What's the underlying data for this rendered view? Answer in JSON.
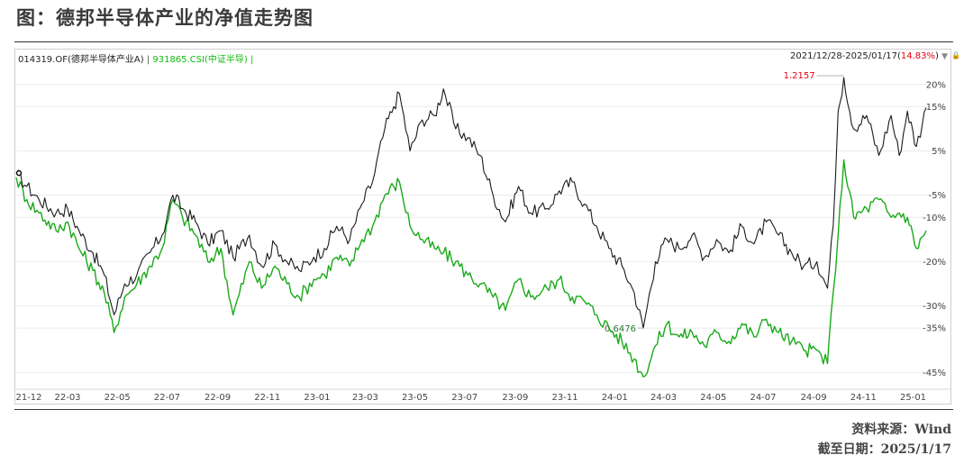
{
  "figure_title": "图：德邦半导体产业的净值走势图",
  "legend": {
    "fund_label": "014319.OF(德邦半导体产业A)",
    "separator": "|",
    "index_label": "931865.CSI(中证半导)",
    "trailing": "|"
  },
  "range": {
    "dates": "2021/12/28-2025/01/17",
    "open": "(",
    "pct": "14.83%",
    "close": ")",
    "arrow": "▼",
    "lock": "🔒"
  },
  "source": "资料来源：Wind",
  "cutoff_date": "截至日期：2025/1/17",
  "colors": {
    "fund": "#1a1a1a",
    "index": "#1aaa1a",
    "annot_red": "#e60012"
  },
  "chart_data": {
    "type": "line",
    "x_ticks": [
      "21-12",
      "22-03",
      "22-05",
      "22-07",
      "22-09",
      "22-11",
      "23-01",
      "23-03",
      "23-05",
      "23-07",
      "23-09",
      "23-11",
      "24-01",
      "24-03",
      "24-05",
      "24-07",
      "24-09",
      "24-11",
      "25-01"
    ],
    "y_ticks": [
      "20%",
      "15%",
      "5%",
      "-5%",
      "-10%",
      "-20%",
      "-30%",
      "-35%",
      "-45%"
    ],
    "y_tick_values": [
      20,
      15,
      5,
      -5,
      -10,
      -20,
      -30,
      -35,
      -45
    ],
    "ylim": [
      -48,
      22
    ],
    "x_range": [
      "2021-12-28",
      "2025-01-17"
    ],
    "annotations": [
      {
        "text": "1.2157",
        "x": "2024-10-08",
        "y": 21.6,
        "color": "red"
      },
      {
        "text": "0.6476",
        "x": "2024-02-05",
        "y": -35.2,
        "color": "green"
      }
    ],
    "series": [
      {
        "name": "014319.OF(德邦半导体产业A)",
        "points": [
          [
            "2021-12-28",
            0
          ],
          [
            "2022-01-10",
            -3
          ],
          [
            "2022-01-25",
            -6
          ],
          [
            "2022-02-15",
            -9
          ],
          [
            "2022-03-01",
            -8
          ],
          [
            "2022-03-15",
            -13
          ],
          [
            "2022-04-01",
            -18
          ],
          [
            "2022-04-15",
            -23
          ],
          [
            "2022-04-27",
            -32
          ],
          [
            "2022-05-10",
            -25
          ],
          [
            "2022-05-25",
            -23
          ],
          [
            "2022-06-10",
            -18
          ],
          [
            "2022-06-25",
            -14
          ],
          [
            "2022-07-08",
            -5
          ],
          [
            "2022-07-20",
            -8
          ],
          [
            "2022-08-05",
            -11
          ],
          [
            "2022-08-20",
            -16
          ],
          [
            "2022-09-05",
            -13
          ],
          [
            "2022-09-20",
            -19
          ],
          [
            "2022-10-10",
            -14
          ],
          [
            "2022-10-25",
            -21
          ],
          [
            "2022-11-10",
            -16
          ],
          [
            "2022-11-25",
            -20
          ],
          [
            "2022-12-10",
            -22
          ],
          [
            "2022-12-28",
            -19
          ],
          [
            "2023-01-10",
            -17
          ],
          [
            "2023-01-25",
            -12
          ],
          [
            "2023-02-10",
            -15
          ],
          [
            "2023-02-25",
            -7
          ],
          [
            "2023-03-10",
            -2
          ],
          [
            "2023-03-25",
            10
          ],
          [
            "2023-04-05",
            15
          ],
          [
            "2023-04-12",
            18
          ],
          [
            "2023-04-25",
            5
          ],
          [
            "2023-05-10",
            12
          ],
          [
            "2023-05-25",
            13
          ],
          [
            "2023-06-05",
            19
          ],
          [
            "2023-06-20",
            10
          ],
          [
            "2023-07-05",
            8
          ],
          [
            "2023-07-20",
            4
          ],
          [
            "2023-08-05",
            -5
          ],
          [
            "2023-08-20",
            -11
          ],
          [
            "2023-09-05",
            -3
          ],
          [
            "2023-09-20",
            -9
          ],
          [
            "2023-10-10",
            -8
          ],
          [
            "2023-10-25",
            -4
          ],
          [
            "2023-11-10",
            -2
          ],
          [
            "2023-11-25",
            -7
          ],
          [
            "2023-12-10",
            -12
          ],
          [
            "2023-12-25",
            -17
          ],
          [
            "2024-01-10",
            -21
          ],
          [
            "2024-01-25",
            -27
          ],
          [
            "2024-02-05",
            -35
          ],
          [
            "2024-02-20",
            -20
          ],
          [
            "2024-03-05",
            -15
          ],
          [
            "2024-03-20",
            -17
          ],
          [
            "2024-04-05",
            -14
          ],
          [
            "2024-04-20",
            -19
          ],
          [
            "2024-05-05",
            -15
          ],
          [
            "2024-05-20",
            -18
          ],
          [
            "2024-06-05",
            -12
          ],
          [
            "2024-06-20",
            -16
          ],
          [
            "2024-07-05",
            -11
          ],
          [
            "2024-07-20",
            -14
          ],
          [
            "2024-08-05",
            -18
          ],
          [
            "2024-08-20",
            -21
          ],
          [
            "2024-09-05",
            -20
          ],
          [
            "2024-09-18",
            -26
          ],
          [
            "2024-09-25",
            -12
          ],
          [
            "2024-10-01",
            14
          ],
          [
            "2024-10-08",
            21.6
          ],
          [
            "2024-10-20",
            10
          ],
          [
            "2024-11-05",
            13
          ],
          [
            "2024-11-20",
            4
          ],
          [
            "2024-12-05",
            13
          ],
          [
            "2024-12-15",
            4
          ],
          [
            "2024-12-25",
            14
          ],
          [
            "2025-01-05",
            6
          ],
          [
            "2025-01-17",
            14.8
          ]
        ]
      },
      {
        "name": "931865.CSI(中证半导)",
        "points": [
          [
            "2021-12-28",
            -1
          ],
          [
            "2022-01-10",
            -6
          ],
          [
            "2022-01-25",
            -9
          ],
          [
            "2022-02-15",
            -13
          ],
          [
            "2022-03-01",
            -11
          ],
          [
            "2022-03-15",
            -17
          ],
          [
            "2022-04-01",
            -22
          ],
          [
            "2022-04-15",
            -27
          ],
          [
            "2022-04-27",
            -36
          ],
          [
            "2022-05-10",
            -28
          ],
          [
            "2022-05-25",
            -25
          ],
          [
            "2022-06-10",
            -21
          ],
          [
            "2022-06-25",
            -17
          ],
          [
            "2022-07-08",
            -6
          ],
          [
            "2022-07-20",
            -10
          ],
          [
            "2022-08-05",
            -14
          ],
          [
            "2022-08-20",
            -20
          ],
          [
            "2022-09-05",
            -17
          ],
          [
            "2022-09-20",
            -32
          ],
          [
            "2022-10-10",
            -20
          ],
          [
            "2022-10-25",
            -26
          ],
          [
            "2022-11-10",
            -21
          ],
          [
            "2022-11-25",
            -25
          ],
          [
            "2022-12-10",
            -28
          ],
          [
            "2022-12-28",
            -24
          ],
          [
            "2023-01-10",
            -23
          ],
          [
            "2023-01-25",
            -19
          ],
          [
            "2023-02-10",
            -21
          ],
          [
            "2023-02-25",
            -15
          ],
          [
            "2023-03-10",
            -12
          ],
          [
            "2023-03-25",
            -5
          ],
          [
            "2023-04-05",
            -3
          ],
          [
            "2023-04-12",
            -2
          ],
          [
            "2023-04-25",
            -12
          ],
          [
            "2023-05-10",
            -15
          ],
          [
            "2023-05-25",
            -17
          ],
          [
            "2023-06-05",
            -18
          ],
          [
            "2023-06-20",
            -20
          ],
          [
            "2023-07-05",
            -23
          ],
          [
            "2023-07-20",
            -25
          ],
          [
            "2023-08-05",
            -28
          ],
          [
            "2023-08-20",
            -31
          ],
          [
            "2023-09-05",
            -24
          ],
          [
            "2023-09-20",
            -28
          ],
          [
            "2023-10-10",
            -26
          ],
          [
            "2023-10-25",
            -24
          ],
          [
            "2023-11-10",
            -28
          ],
          [
            "2023-11-25",
            -29
          ],
          [
            "2023-12-10",
            -32
          ],
          [
            "2023-12-25",
            -35
          ],
          [
            "2024-01-10",
            -38
          ],
          [
            "2024-01-25",
            -42
          ],
          [
            "2024-02-05",
            -46
          ],
          [
            "2024-02-20",
            -39
          ],
          [
            "2024-03-05",
            -34
          ],
          [
            "2024-03-20",
            -37
          ],
          [
            "2024-04-05",
            -36
          ],
          [
            "2024-04-20",
            -39
          ],
          [
            "2024-05-05",
            -36
          ],
          [
            "2024-05-20",
            -38
          ],
          [
            "2024-06-05",
            -34
          ],
          [
            "2024-06-20",
            -37
          ],
          [
            "2024-07-05",
            -33
          ],
          [
            "2024-07-20",
            -36
          ],
          [
            "2024-08-05",
            -38
          ],
          [
            "2024-08-20",
            -40
          ],
          [
            "2024-09-05",
            -40
          ],
          [
            "2024-09-18",
            -43
          ],
          [
            "2024-09-25",
            -27
          ],
          [
            "2024-10-01",
            -14
          ],
          [
            "2024-10-08",
            3
          ],
          [
            "2024-10-20",
            -10
          ],
          [
            "2024-11-05",
            -8
          ],
          [
            "2024-11-20",
            -6
          ],
          [
            "2024-12-05",
            -10
          ],
          [
            "2024-12-15",
            -9
          ],
          [
            "2024-12-25",
            -10
          ],
          [
            "2025-01-05",
            -17
          ],
          [
            "2025-01-17",
            -13
          ]
        ]
      }
    ]
  }
}
